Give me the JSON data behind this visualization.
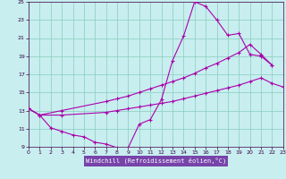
{
  "xlabel": "Windchill (Refroidissement éolien,°C)",
  "bg_color": "#c8eef0",
  "plot_bg": "#c8eef0",
  "line_color": "#aa00aa",
  "grid_color": "#88ccbb",
  "label_bg": "#8855aa",
  "xlim": [
    0,
    23
  ],
  "ylim": [
    9,
    25
  ],
  "yticks": [
    9,
    11,
    13,
    15,
    17,
    19,
    21,
    23,
    25
  ],
  "xticks": [
    0,
    1,
    2,
    3,
    4,
    5,
    6,
    7,
    8,
    9,
    10,
    11,
    12,
    13,
    14,
    15,
    16,
    17,
    18,
    19,
    20,
    21,
    22,
    23
  ],
  "line1_x": [
    0,
    1,
    2,
    3,
    4,
    5,
    6,
    7,
    8,
    9,
    10,
    11,
    12,
    13,
    14,
    15,
    16,
    17,
    18,
    19,
    20,
    21,
    22
  ],
  "line1_y": [
    13.2,
    12.5,
    11.1,
    10.7,
    10.3,
    10.1,
    9.5,
    9.3,
    8.9,
    8.9,
    11.5,
    12.0,
    14.2,
    18.5,
    21.2,
    25.0,
    24.5,
    23.0,
    21.3,
    21.5,
    19.2,
    19.0,
    18.0
  ],
  "line2_x": [
    0,
    1,
    3,
    7,
    8,
    9,
    10,
    11,
    12,
    13,
    14,
    15,
    16,
    17,
    18,
    19,
    20,
    21,
    22
  ],
  "line2_y": [
    13.2,
    12.5,
    13.0,
    14.0,
    14.3,
    14.6,
    15.0,
    15.4,
    15.8,
    16.2,
    16.6,
    17.1,
    17.7,
    18.2,
    18.8,
    19.4,
    20.3,
    19.2,
    18.0
  ],
  "line3_x": [
    0,
    1,
    3,
    7,
    8,
    9,
    10,
    11,
    12,
    13,
    14,
    15,
    16,
    17,
    18,
    19,
    20,
    21,
    22,
    23
  ],
  "line3_y": [
    13.2,
    12.5,
    12.5,
    12.8,
    13.0,
    13.2,
    13.4,
    13.6,
    13.8,
    14.0,
    14.3,
    14.6,
    14.9,
    15.2,
    15.5,
    15.8,
    16.2,
    16.6,
    16.0,
    15.6
  ]
}
